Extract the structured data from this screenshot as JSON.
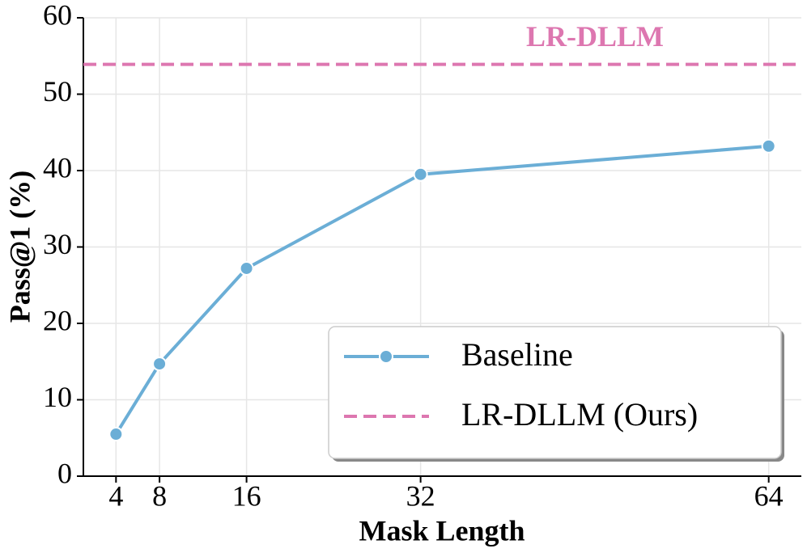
{
  "chart_data": {
    "type": "line",
    "xlabel": "Mask Length",
    "ylabel": "Pass@1 (%)",
    "x": [
      4,
      8,
      16,
      32,
      64
    ],
    "series": [
      {
        "name": "Baseline",
        "color": "#6baed6",
        "values": [
          5.5,
          14.7,
          27.2,
          39.5,
          43.2
        ]
      }
    ],
    "reference_lines": [
      {
        "name": "LR-DLLM (Ours)",
        "color": "#dd77b0",
        "value": 53.9,
        "annotation": "LR-DLLM"
      }
    ],
    "xlim": [
      1,
      67
    ],
    "ylim": [
      0,
      60
    ],
    "xticks": [
      4,
      8,
      16,
      32,
      64
    ],
    "yticks": [
      0,
      10,
      20,
      30,
      40,
      50,
      60
    ],
    "grid": true,
    "legend": "lower right"
  }
}
